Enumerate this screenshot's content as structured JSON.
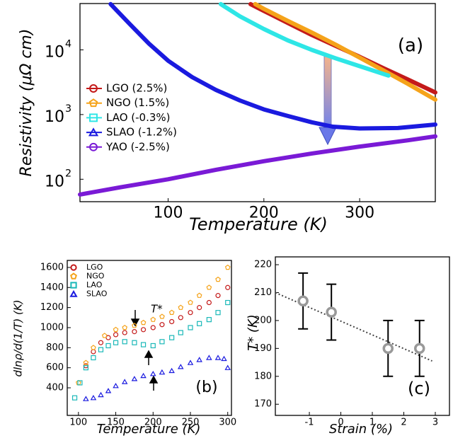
{
  "chart_data": [
    {
      "type": "line",
      "title": "(a)",
      "x_label": "Temperature (K)",
      "y_label": "Resistivity (μΩ cm)",
      "xlim": [
        8,
        379
      ],
      "xticks": [
        100,
        200,
        300
      ],
      "ylim": [
        45,
        52000
      ],
      "log_y": true,
      "yticks": [
        {
          "value": 100,
          "label": "10",
          "exponent": "2"
        },
        {
          "value": 1000,
          "label": "10",
          "exponent": "3"
        },
        {
          "value": 10000,
          "label": "10",
          "exponent": "4"
        }
      ],
      "series": [
        {
          "name": "LGO  (2.5%)",
          "color": "#c41a1a",
          "marker": "circle",
          "x": [
            186,
            200,
            225,
            250,
            275,
            300,
            325,
            350,
            379
          ],
          "values": [
            51000,
            40000,
            26000,
            17000,
            11500,
            7800,
            5200,
            3500,
            2200
          ]
        },
        {
          "name": "NGO  (1.5%)",
          "color": "#f5a31a",
          "marker": "pentagon",
          "x": [
            191,
            200,
            225,
            250,
            275,
            300,
            325,
            350,
            379
          ],
          "values": [
            51000,
            43000,
            28000,
            18500,
            12000,
            7600,
            4800,
            3000,
            1700
          ]
        },
        {
          "name": "LAO  (-0.3%)",
          "color": "#2ee6e6",
          "marker": "square",
          "x": [
            155,
            175,
            200,
            225,
            250,
            275,
            300,
            330
          ],
          "values": [
            51000,
            33000,
            21000,
            14000,
            10000,
            7400,
            5600,
            4000
          ]
        },
        {
          "name": "SLAO  (-1.2%)",
          "color": "#1a1adf",
          "marker": "triangle",
          "x": [
            40,
            60,
            80,
            100,
            125,
            150,
            175,
            200,
            225,
            250,
            272,
            300,
            340,
            379
          ],
          "values": [
            51000,
            25000,
            12500,
            6800,
            3800,
            2400,
            1650,
            1200,
            950,
            760,
            650,
            610,
            620,
            700
          ]
        },
        {
          "name": "YAO  (-2.5%)",
          "color": "#7a1ad6",
          "marker": "circle",
          "x": [
            8,
            50,
            100,
            150,
            200,
            250,
            300,
            350,
            379
          ],
          "values": [
            58,
            75,
            100,
            140,
            190,
            250,
            320,
            400,
            460
          ]
        }
      ]
    },
    {
      "type": "scatter",
      "title": "(b)",
      "x_label": "Temperature (K)",
      "y_label": "dlnρ/d(1/T) (K)",
      "annotation": "T*",
      "xlim": [
        85,
        305
      ],
      "xticks": [
        100,
        150,
        200,
        250,
        300
      ],
      "ylim": [
        125,
        1670
      ],
      "yticks": [
        400,
        600,
        800,
        1000,
        1200,
        1400,
        1600
      ],
      "series": [
        {
          "name": "LGO",
          "color": "#c41a1a",
          "marker": "circle",
          "x": [
            110,
            120,
            130,
            140,
            150,
            162,
            175,
            187,
            200,
            212,
            225,
            237,
            250,
            262,
            275,
            287,
            300
          ],
          "values": [
            620,
            760,
            850,
            900,
            930,
            950,
            960,
            980,
            1000,
            1030,
            1060,
            1100,
            1150,
            1200,
            1250,
            1320,
            1400
          ]
        },
        {
          "name": "NGO",
          "color": "#f5a31a",
          "marker": "pentagon",
          "x": [
            100,
            110,
            120,
            135,
            150,
            162,
            175,
            187,
            200,
            212,
            225,
            237,
            250,
            262,
            275,
            287,
            300
          ],
          "values": [
            450,
            650,
            800,
            920,
            980,
            1000,
            1020,
            1050,
            1080,
            1110,
            1150,
            1200,
            1250,
            1320,
            1400,
            1480,
            1600
          ]
        },
        {
          "name": "LAO",
          "color": "#1ab8b8",
          "marker": "square",
          "x": [
            95,
            102,
            110,
            120,
            130,
            140,
            150,
            162,
            175,
            187,
            200,
            212,
            225,
            237,
            250,
            262,
            275,
            287,
            300
          ],
          "values": [
            300,
            450,
            600,
            700,
            780,
            820,
            850,
            860,
            850,
            830,
            820,
            860,
            900,
            950,
            1000,
            1040,
            1080,
            1150,
            1250
          ]
        },
        {
          "name": "SLAO",
          "color": "#1a1adf",
          "marker": "triangle",
          "x": [
            110,
            120,
            130,
            140,
            150,
            162,
            175,
            187,
            200,
            212,
            225,
            237,
            250,
            262,
            275,
            287,
            295,
            300
          ],
          "values": [
            290,
            300,
            330,
            370,
            420,
            460,
            490,
            520,
            540,
            555,
            570,
            610,
            650,
            680,
            700,
            700,
            690,
            600
          ]
        }
      ]
    },
    {
      "type": "errorbar",
      "title": "(c)",
      "x_label": "Strain (%)",
      "y_label": "T* (K)",
      "xlim": [
        -2.08,
        3.45
      ],
      "xticks": [
        -1,
        0,
        1,
        2,
        3
      ],
      "ylim": [
        166,
        222.8
      ],
      "yticks": [
        170,
        180,
        190,
        200,
        210,
        220
      ],
      "x": [
        -1.2,
        -0.3,
        1.5,
        2.5
      ],
      "values": [
        207,
        203,
        190,
        190
      ],
      "errors": [
        10,
        10,
        10,
        10
      ],
      "color": "#999999",
      "fit": {
        "x": [
          -2.08,
          2.9
        ],
        "values": [
          210,
          185.5
        ]
      }
    }
  ]
}
